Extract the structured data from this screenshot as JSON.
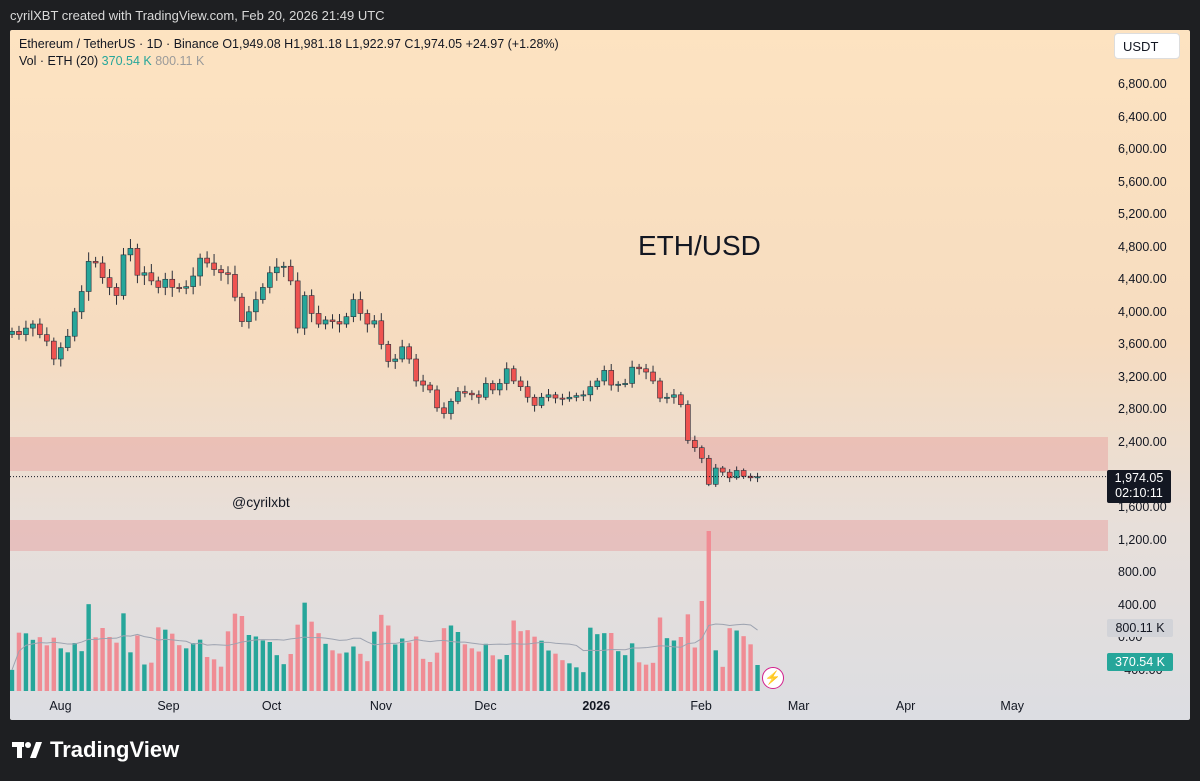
{
  "header": {
    "caption": "cyrilXBT created with TradingView.com, Feb 20, 2026 21:49 UTC"
  },
  "legend": {
    "line1": "Ethereum / TetherUS · 1D · Binance  O1,949.08  H1,981.18  L1,922.97  C1,974.05  +24.97 (+1.28%)",
    "vol_label": "Vol · ETH (20)",
    "vol_value": "370.54 K",
    "vol_avg": "800.11 K"
  },
  "currency_button": "USDT",
  "title_annotation": "ETH/USD",
  "watermark": "@cyrilxbt",
  "price_tag": {
    "price": "1,974.05",
    "countdown": "02:10:11"
  },
  "volume_tags": {
    "avg": "800.11 K",
    "current": "370.54 K"
  },
  "footer": {
    "brand": "TradingView"
  },
  "colors": {
    "up": "#26a69a",
    "down": "#ef5350",
    "zone": "#e89696",
    "background_top": "#fde3c1",
    "background_bottom": "#dcdde2"
  },
  "icons": [
    "lightning-icon",
    "tradingview-logo-icon"
  ],
  "chart_data": {
    "type": "candlestick",
    "title": "ETH/USD",
    "ylim": [
      -400,
      7300
    ],
    "y_ticks": [
      "6,800.00",
      "6,400.00",
      "6,000.00",
      "5,600.00",
      "5,200.00",
      "4,800.00",
      "4,400.00",
      "4,000.00",
      "3,600.00",
      "3,200.00",
      "2,800.00",
      "2,400.00",
      "1,600.00",
      "1,200.00",
      "800.00",
      "400.00",
      "0.00",
      "−400.00"
    ],
    "x_ticks": [
      {
        "label": "Aug",
        "date": "2025-08-01",
        "bold": false
      },
      {
        "label": "Sep",
        "date": "2025-09-01",
        "bold": false
      },
      {
        "label": "Oct",
        "date": "2025-10-01",
        "bold": false
      },
      {
        "label": "Nov",
        "date": "2025-11-01",
        "bold": false
      },
      {
        "label": "Dec",
        "date": "2025-12-01",
        "bold": false
      },
      {
        "label": "2026",
        "date": "2026-01-01",
        "bold": true
      },
      {
        "label": "Feb",
        "date": "2026-02-01",
        "bold": false
      },
      {
        "label": "Mar",
        "date": "2026-03-01",
        "bold": false
      },
      {
        "label": "Apr",
        "date": "2026-04-01",
        "bold": false
      },
      {
        "label": "May",
        "date": "2026-05-01",
        "bold": false
      }
    ],
    "x_range": [
      "2025-07-21",
      "2026-05-27"
    ],
    "last_close": 1974.05,
    "zones": [
      {
        "from": 2000,
        "to": 2400
      },
      {
        "from": 1080,
        "to": 1440
      }
    ],
    "volume_avg_level": 800110,
    "candles": [
      {
        "date": "2025-07-21",
        "close": 3760
      },
      {
        "date": "2025-07-23",
        "close": 3720
      },
      {
        "date": "2025-07-25",
        "close": 3800
      },
      {
        "date": "2025-07-27",
        "close": 3850
      },
      {
        "date": "2025-07-29",
        "close": 3720
      },
      {
        "date": "2025-07-31",
        "close": 3640
      },
      {
        "date": "2025-08-02",
        "close": 3420
      },
      {
        "date": "2025-08-04",
        "close": 3560
      },
      {
        "date": "2025-08-06",
        "close": 3700
      },
      {
        "date": "2025-08-08",
        "close": 4000
      },
      {
        "date": "2025-08-10",
        "close": 4250
      },
      {
        "date": "2025-08-12",
        "close": 4620
      },
      {
        "date": "2025-08-14",
        "close": 4600
      },
      {
        "date": "2025-08-16",
        "close": 4420
      },
      {
        "date": "2025-08-18",
        "close": 4300
      },
      {
        "date": "2025-08-20",
        "close": 4200
      },
      {
        "date": "2025-08-22",
        "close": 4700
      },
      {
        "date": "2025-08-24",
        "close": 4780
      },
      {
        "date": "2025-08-26",
        "close": 4450
      },
      {
        "date": "2025-08-28",
        "close": 4480
      },
      {
        "date": "2025-08-30",
        "close": 4380
      },
      {
        "date": "2025-09-01",
        "close": 4300
      },
      {
        "date": "2025-09-03",
        "close": 4400
      },
      {
        "date": "2025-09-05",
        "close": 4300
      },
      {
        "date": "2025-09-07",
        "close": 4290
      },
      {
        "date": "2025-09-09",
        "close": 4310
      },
      {
        "date": "2025-09-11",
        "close": 4440
      },
      {
        "date": "2025-09-13",
        "close": 4660
      },
      {
        "date": "2025-09-15",
        "close": 4600
      },
      {
        "date": "2025-09-17",
        "close": 4520
      },
      {
        "date": "2025-09-19",
        "close": 4480
      },
      {
        "date": "2025-09-21",
        "close": 4460
      },
      {
        "date": "2025-09-23",
        "close": 4180
      },
      {
        "date": "2025-09-25",
        "close": 3880
      },
      {
        "date": "2025-09-27",
        "close": 4000
      },
      {
        "date": "2025-09-29",
        "close": 4150
      },
      {
        "date": "2025-10-01",
        "close": 4300
      },
      {
        "date": "2025-10-03",
        "close": 4480
      },
      {
        "date": "2025-10-05",
        "close": 4550
      },
      {
        "date": "2025-10-07",
        "close": 4560
      },
      {
        "date": "2025-10-09",
        "close": 4380
      },
      {
        "date": "2025-10-11",
        "close": 3800
      },
      {
        "date": "2025-10-13",
        "close": 4200
      },
      {
        "date": "2025-10-15",
        "close": 3980
      },
      {
        "date": "2025-10-17",
        "close": 3850
      },
      {
        "date": "2025-10-19",
        "close": 3900
      },
      {
        "date": "2025-10-21",
        "close": 3880
      },
      {
        "date": "2025-10-23",
        "close": 3850
      },
      {
        "date": "2025-10-25",
        "close": 3940
      },
      {
        "date": "2025-10-27",
        "close": 4150
      },
      {
        "date": "2025-10-29",
        "close": 3980
      },
      {
        "date": "2025-10-31",
        "close": 3850
      },
      {
        "date": "2025-11-02",
        "close": 3890
      },
      {
        "date": "2025-11-04",
        "close": 3600
      },
      {
        "date": "2025-11-06",
        "close": 3390
      },
      {
        "date": "2025-11-08",
        "close": 3420
      },
      {
        "date": "2025-11-10",
        "close": 3570
      },
      {
        "date": "2025-11-12",
        "close": 3420
      },
      {
        "date": "2025-11-14",
        "close": 3150
      },
      {
        "date": "2025-11-16",
        "close": 3100
      },
      {
        "date": "2025-11-18",
        "close": 3040
      },
      {
        "date": "2025-11-20",
        "close": 2820
      },
      {
        "date": "2025-11-22",
        "close": 2750
      },
      {
        "date": "2025-11-24",
        "close": 2900
      },
      {
        "date": "2025-11-26",
        "close": 3020
      },
      {
        "date": "2025-11-28",
        "close": 3000
      },
      {
        "date": "2025-11-30",
        "close": 2980
      },
      {
        "date": "2025-12-02",
        "close": 2950
      },
      {
        "date": "2025-12-04",
        "close": 3120
      },
      {
        "date": "2025-12-06",
        "close": 3040
      },
      {
        "date": "2025-12-08",
        "close": 3120
      },
      {
        "date": "2025-12-10",
        "close": 3300
      },
      {
        "date": "2025-12-12",
        "close": 3150
      },
      {
        "date": "2025-12-14",
        "close": 3080
      },
      {
        "date": "2025-12-16",
        "close": 2950
      },
      {
        "date": "2025-12-18",
        "close": 2850
      },
      {
        "date": "2025-12-20",
        "close": 2950
      },
      {
        "date": "2025-12-22",
        "close": 2980
      },
      {
        "date": "2025-12-24",
        "close": 2940
      },
      {
        "date": "2025-12-26",
        "close": 2930
      },
      {
        "date": "2025-12-28",
        "close": 2950
      },
      {
        "date": "2025-12-30",
        "close": 2970
      },
      {
        "date": "2026-01-01",
        "close": 2980
      },
      {
        "date": "2026-01-03",
        "close": 3080
      },
      {
        "date": "2026-01-05",
        "close": 3150
      },
      {
        "date": "2026-01-07",
        "close": 3280
      },
      {
        "date": "2026-01-09",
        "close": 3100
      },
      {
        "date": "2026-01-11",
        "close": 3110
      },
      {
        "date": "2026-01-13",
        "close": 3120
      },
      {
        "date": "2026-01-15",
        "close": 3320
      },
      {
        "date": "2026-01-17",
        "close": 3300
      },
      {
        "date": "2026-01-19",
        "close": 3260
      },
      {
        "date": "2026-01-21",
        "close": 3150
      },
      {
        "date": "2026-01-23",
        "close": 2940
      },
      {
        "date": "2026-01-25",
        "close": 2950
      },
      {
        "date": "2026-01-27",
        "close": 2980
      },
      {
        "date": "2026-01-29",
        "close": 2860
      },
      {
        "date": "2026-01-31",
        "close": 2420
      },
      {
        "date": "2026-02-02",
        "close": 2330
      },
      {
        "date": "2026-02-04",
        "close": 2200
      },
      {
        "date": "2026-02-06",
        "close": 1880
      },
      {
        "date": "2026-02-08",
        "close": 2080
      },
      {
        "date": "2026-02-10",
        "close": 2030
      },
      {
        "date": "2026-02-12",
        "close": 1960
      },
      {
        "date": "2026-02-14",
        "close": 2050
      },
      {
        "date": "2026-02-16",
        "close": 1980
      },
      {
        "date": "2026-02-18",
        "close": 1960
      },
      {
        "date": "2026-02-20",
        "close": 1974.05
      }
    ],
    "volume_note": "Volume bars (0–1.4M ETH scale) shown in lower pane; spike to ~1.4M around Feb 6, 2026"
  }
}
